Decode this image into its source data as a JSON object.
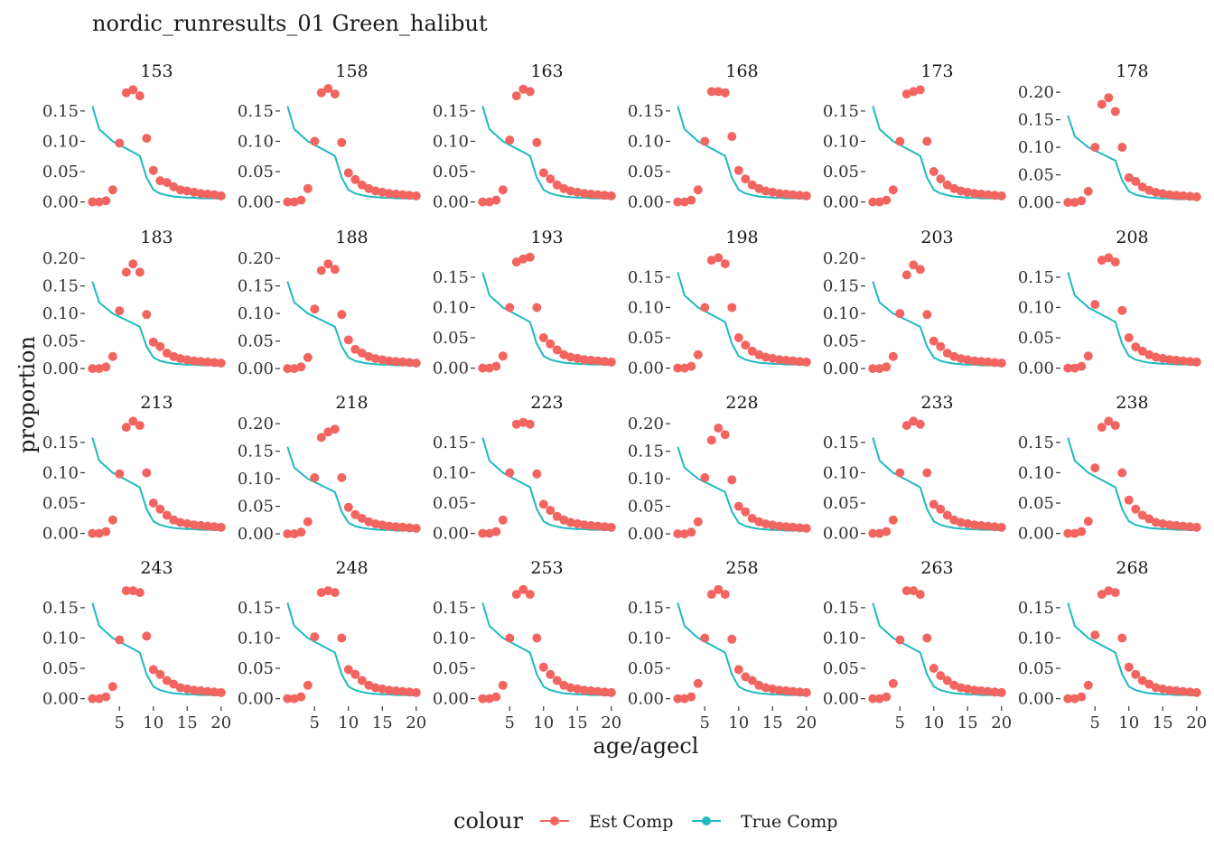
{
  "chart_data": {
    "type": "scatter",
    "title": "nordic_runresults_01 Green_halibut",
    "xlabel": "age/agecl",
    "ylabel": "proportion",
    "legend": {
      "title": "colour",
      "position": "bottom",
      "entries": [
        {
          "label": "Est Comp",
          "color": "#f2645f",
          "geom": "point-line"
        },
        {
          "label": "True Comp",
          "color": "#1dbac0",
          "geom": "line"
        }
      ]
    },
    "x_ticks": [
      5,
      10,
      15,
      20
    ],
    "xlim": [
      0.3,
      20.7
    ],
    "grid": false,
    "facet": {
      "rows": 4,
      "cols": 6,
      "scales": "free_y"
    },
    "x": [
      1,
      2,
      3,
      4,
      5,
      6,
      7,
      8,
      9,
      10,
      11,
      12,
      13,
      14,
      15,
      16,
      17,
      18,
      19,
      20
    ],
    "true_comp": [
      0.158,
      0.12,
      0.11,
      0.1,
      0.094,
      0.088,
      0.082,
      0.076,
      0.04,
      0.02,
      0.014,
      0.011,
      0.009,
      0.008,
      0.007,
      0.007,
      0.006,
      0.006,
      0.006,
      0.005
    ],
    "panels": [
      {
        "label": "153",
        "ylim": [
          -0.008,
          0.19
        ],
        "yticks": [
          0.0,
          0.05,
          0.1,
          0.15
        ],
        "tick_labels": [
          "0.00",
          "0.05",
          "0.10",
          "0.15"
        ],
        "est_comp": [
          0.0,
          0.0,
          0.002,
          0.02,
          0.097,
          0.18,
          0.185,
          0.175,
          0.105,
          0.052,
          0.035,
          0.032,
          0.025,
          0.02,
          0.018,
          0.016,
          0.014,
          0.013,
          0.012,
          0.01
        ]
      },
      {
        "label": "158",
        "ylim": [
          -0.008,
          0.19
        ],
        "yticks": [
          0.0,
          0.05,
          0.1,
          0.15
        ],
        "tick_labels": [
          "0.00",
          "0.05",
          "0.10",
          "0.15"
        ],
        "est_comp": [
          0.0,
          0.0,
          0.003,
          0.022,
          0.1,
          0.18,
          0.187,
          0.178,
          0.098,
          0.048,
          0.037,
          0.028,
          0.022,
          0.018,
          0.016,
          0.014,
          0.013,
          0.012,
          0.011,
          0.01
        ]
      },
      {
        "label": "163",
        "ylim": [
          -0.008,
          0.19
        ],
        "yticks": [
          0.0,
          0.05,
          0.1,
          0.15
        ],
        "tick_labels": [
          "0.00",
          "0.05",
          "0.10",
          "0.15"
        ],
        "est_comp": [
          0.0,
          0.0,
          0.003,
          0.02,
          0.102,
          0.175,
          0.186,
          0.182,
          0.098,
          0.048,
          0.038,
          0.028,
          0.022,
          0.018,
          0.016,
          0.014,
          0.013,
          0.012,
          0.011,
          0.01
        ]
      },
      {
        "label": "168",
        "ylim": [
          -0.008,
          0.19
        ],
        "yticks": [
          0.0,
          0.05,
          0.1,
          0.15
        ],
        "tick_labels": [
          "0.00",
          "0.05",
          "0.10",
          "0.15"
        ],
        "est_comp": [
          0.0,
          0.0,
          0.003,
          0.02,
          0.1,
          0.182,
          0.182,
          0.18,
          0.108,
          0.052,
          0.038,
          0.028,
          0.022,
          0.018,
          0.016,
          0.014,
          0.013,
          0.012,
          0.011,
          0.01
        ]
      },
      {
        "label": "173",
        "ylim": [
          -0.008,
          0.19
        ],
        "yticks": [
          0.0,
          0.05,
          0.1,
          0.15
        ],
        "tick_labels": [
          "0.00",
          "0.05",
          "0.10",
          "0.15"
        ],
        "est_comp": [
          0.0,
          0.0,
          0.003,
          0.02,
          0.1,
          0.178,
          0.182,
          0.185,
          0.1,
          0.05,
          0.038,
          0.028,
          0.022,
          0.018,
          0.016,
          0.014,
          0.013,
          0.012,
          0.011,
          0.01
        ]
      },
      {
        "label": "178",
        "ylim": [
          -0.008,
          0.21
        ],
        "yticks": [
          0.0,
          0.05,
          0.1,
          0.15,
          0.2
        ],
        "tick_labels": [
          "0.00",
          "0.05",
          "0.10",
          "0.15",
          "0.20"
        ],
        "est_comp": [
          0.0,
          0.0,
          0.003,
          0.02,
          0.1,
          0.178,
          0.19,
          0.165,
          0.1,
          0.045,
          0.038,
          0.028,
          0.022,
          0.018,
          0.016,
          0.014,
          0.013,
          0.012,
          0.011,
          0.01
        ]
      },
      {
        "label": "183",
        "ylim": [
          -0.008,
          0.21
        ],
        "yticks": [
          0.0,
          0.05,
          0.1,
          0.15,
          0.2
        ],
        "tick_labels": [
          "0.00",
          "0.05",
          "0.10",
          "0.15",
          "0.20"
        ],
        "est_comp": [
          0.0,
          0.0,
          0.003,
          0.022,
          0.105,
          0.175,
          0.19,
          0.175,
          0.098,
          0.048,
          0.04,
          0.028,
          0.022,
          0.018,
          0.016,
          0.014,
          0.013,
          0.012,
          0.011,
          0.01
        ]
      },
      {
        "label": "188",
        "ylim": [
          -0.008,
          0.21
        ],
        "yticks": [
          0.0,
          0.05,
          0.1,
          0.15,
          0.2
        ],
        "tick_labels": [
          "0.00",
          "0.05",
          "0.10",
          "0.15",
          "0.20"
        ],
        "est_comp": [
          0.0,
          0.0,
          0.003,
          0.02,
          0.108,
          0.178,
          0.19,
          0.18,
          0.098,
          0.052,
          0.035,
          0.028,
          0.022,
          0.018,
          0.016,
          0.014,
          0.013,
          0.012,
          0.011,
          0.01
        ]
      },
      {
        "label": "193",
        "ylim": [
          -0.008,
          0.19
        ],
        "yticks": [
          0.0,
          0.05,
          0.1,
          0.15
        ],
        "tick_labels": [
          "0.00",
          "0.05",
          "0.10",
          "0.15"
        ],
        "est_comp": [
          0.0,
          0.0,
          0.003,
          0.02,
          0.1,
          0.175,
          0.18,
          0.183,
          0.1,
          0.05,
          0.04,
          0.03,
          0.022,
          0.018,
          0.016,
          0.014,
          0.013,
          0.012,
          0.011,
          0.01
        ]
      },
      {
        "label": "198",
        "ylim": [
          -0.008,
          0.19
        ],
        "yticks": [
          0.0,
          0.05,
          0.1,
          0.15
        ],
        "tick_labels": [
          "0.00",
          "0.05",
          "0.10",
          "0.15"
        ],
        "est_comp": [
          0.0,
          0.0,
          0.003,
          0.022,
          0.1,
          0.178,
          0.182,
          0.172,
          0.1,
          0.05,
          0.038,
          0.028,
          0.022,
          0.018,
          0.016,
          0.014,
          0.013,
          0.012,
          0.011,
          0.01
        ]
      },
      {
        "label": "203",
        "ylim": [
          -0.008,
          0.21
        ],
        "yticks": [
          0.0,
          0.05,
          0.1,
          0.15,
          0.2
        ],
        "tick_labels": [
          "0.00",
          "0.05",
          "0.10",
          "0.15",
          "0.20"
        ],
        "est_comp": [
          0.0,
          0.0,
          0.003,
          0.022,
          0.1,
          0.17,
          0.188,
          0.18,
          0.098,
          0.05,
          0.04,
          0.028,
          0.022,
          0.018,
          0.016,
          0.014,
          0.013,
          0.012,
          0.011,
          0.01
        ]
      },
      {
        "label": "208",
        "ylim": [
          -0.008,
          0.19
        ],
        "yticks": [
          0.0,
          0.05,
          0.1,
          0.15
        ],
        "tick_labels": [
          "0.00",
          "0.05",
          "0.10",
          "0.15"
        ],
        "est_comp": [
          0.0,
          0.0,
          0.003,
          0.02,
          0.105,
          0.178,
          0.182,
          0.175,
          0.095,
          0.05,
          0.035,
          0.028,
          0.022,
          0.018,
          0.016,
          0.014,
          0.013,
          0.012,
          0.011,
          0.01
        ]
      },
      {
        "label": "213",
        "ylim": [
          -0.008,
          0.19
        ],
        "yticks": [
          0.0,
          0.05,
          0.1,
          0.15
        ],
        "tick_labels": [
          "0.00",
          "0.05",
          "0.10",
          "0.15"
        ],
        "est_comp": [
          0.0,
          0.0,
          0.003,
          0.022,
          0.098,
          0.175,
          0.185,
          0.178,
          0.1,
          0.05,
          0.04,
          0.03,
          0.022,
          0.018,
          0.016,
          0.014,
          0.013,
          0.012,
          0.011,
          0.01
        ]
      },
      {
        "label": "218",
        "ylim": [
          -0.008,
          0.21
        ],
        "yticks": [
          0.0,
          0.05,
          0.1,
          0.15,
          0.2
        ],
        "tick_labels": [
          "0.00",
          "0.05",
          "0.10",
          "0.15",
          "0.20"
        ],
        "est_comp": [
          0.0,
          0.0,
          0.003,
          0.022,
          0.102,
          0.175,
          0.185,
          0.19,
          0.102,
          0.048,
          0.035,
          0.028,
          0.022,
          0.018,
          0.016,
          0.014,
          0.013,
          0.012,
          0.011,
          0.01
        ]
      },
      {
        "label": "223",
        "ylim": [
          -0.008,
          0.19
        ],
        "yticks": [
          0.0,
          0.05,
          0.1,
          0.15
        ],
        "tick_labels": [
          "0.00",
          "0.05",
          "0.10",
          "0.15"
        ],
        "est_comp": [
          0.0,
          0.0,
          0.003,
          0.022,
          0.1,
          0.18,
          0.183,
          0.18,
          0.098,
          0.048,
          0.038,
          0.028,
          0.022,
          0.018,
          0.016,
          0.014,
          0.013,
          0.012,
          0.011,
          0.01
        ]
      },
      {
        "label": "228",
        "ylim": [
          -0.008,
          0.21
        ],
        "yticks": [
          0.0,
          0.05,
          0.1,
          0.15,
          0.2
        ],
        "tick_labels": [
          "0.00",
          "0.05",
          "0.10",
          "0.15",
          "0.20"
        ],
        "est_comp": [
          0.0,
          0.0,
          0.003,
          0.022,
          0.102,
          0.17,
          0.192,
          0.18,
          0.098,
          0.05,
          0.04,
          0.028,
          0.022,
          0.018,
          0.016,
          0.014,
          0.013,
          0.012,
          0.011,
          0.01
        ]
      },
      {
        "label": "233",
        "ylim": [
          -0.008,
          0.19
        ],
        "yticks": [
          0.0,
          0.05,
          0.1,
          0.15
        ],
        "tick_labels": [
          "0.00",
          "0.05",
          "0.10",
          "0.15"
        ],
        "est_comp": [
          0.0,
          0.0,
          0.003,
          0.022,
          0.1,
          0.178,
          0.185,
          0.18,
          0.1,
          0.048,
          0.04,
          0.03,
          0.022,
          0.018,
          0.016,
          0.014,
          0.013,
          0.012,
          0.011,
          0.01
        ]
      },
      {
        "label": "238",
        "ylim": [
          -0.008,
          0.19
        ],
        "yticks": [
          0.0,
          0.05,
          0.1,
          0.15
        ],
        "tick_labels": [
          "0.00",
          "0.05",
          "0.10",
          "0.15"
        ],
        "est_comp": [
          0.0,
          0.0,
          0.003,
          0.02,
          0.108,
          0.175,
          0.185,
          0.178,
          0.1,
          0.055,
          0.04,
          0.03,
          0.024,
          0.018,
          0.016,
          0.014,
          0.013,
          0.012,
          0.011,
          0.01
        ]
      },
      {
        "label": "243",
        "ylim": [
          -0.008,
          0.19
        ],
        "yticks": [
          0.0,
          0.05,
          0.1,
          0.15
        ],
        "tick_labels": [
          "0.00",
          "0.05",
          "0.10",
          "0.15"
        ],
        "est_comp": [
          0.0,
          0.0,
          0.003,
          0.02,
          0.097,
          0.178,
          0.178,
          0.175,
          0.103,
          0.048,
          0.04,
          0.03,
          0.024,
          0.018,
          0.016,
          0.014,
          0.013,
          0.012,
          0.011,
          0.01
        ]
      },
      {
        "label": "248",
        "ylim": [
          -0.008,
          0.19
        ],
        "yticks": [
          0.0,
          0.05,
          0.1,
          0.15
        ],
        "tick_labels": [
          "0.00",
          "0.05",
          "0.10",
          "0.15"
        ],
        "est_comp": [
          0.0,
          0.0,
          0.003,
          0.022,
          0.102,
          0.175,
          0.178,
          0.175,
          0.1,
          0.048,
          0.04,
          0.03,
          0.022,
          0.018,
          0.016,
          0.014,
          0.013,
          0.012,
          0.011,
          0.01
        ]
      },
      {
        "label": "253",
        "ylim": [
          -0.008,
          0.19
        ],
        "yticks": [
          0.0,
          0.05,
          0.1,
          0.15
        ],
        "tick_labels": [
          "0.00",
          "0.05",
          "0.10",
          "0.15"
        ],
        "est_comp": [
          0.0,
          0.0,
          0.003,
          0.022,
          0.1,
          0.172,
          0.18,
          0.172,
          0.1,
          0.052,
          0.04,
          0.03,
          0.022,
          0.018,
          0.016,
          0.014,
          0.013,
          0.012,
          0.011,
          0.01
        ]
      },
      {
        "label": "258",
        "ylim": [
          -0.008,
          0.19
        ],
        "yticks": [
          0.0,
          0.05,
          0.1,
          0.15
        ],
        "tick_labels": [
          "0.00",
          "0.05",
          "0.10",
          "0.15"
        ],
        "est_comp": [
          0.0,
          0.0,
          0.003,
          0.025,
          0.1,
          0.172,
          0.18,
          0.172,
          0.098,
          0.048,
          0.036,
          0.03,
          0.022,
          0.018,
          0.016,
          0.014,
          0.013,
          0.012,
          0.011,
          0.01
        ]
      },
      {
        "label": "263",
        "ylim": [
          -0.008,
          0.19
        ],
        "yticks": [
          0.0,
          0.05,
          0.1,
          0.15
        ],
        "tick_labels": [
          "0.00",
          "0.05",
          "0.10",
          "0.15"
        ],
        "est_comp": [
          0.0,
          0.0,
          0.003,
          0.025,
          0.097,
          0.178,
          0.178,
          0.172,
          0.1,
          0.05,
          0.038,
          0.03,
          0.022,
          0.018,
          0.016,
          0.014,
          0.013,
          0.012,
          0.011,
          0.01
        ]
      },
      {
        "label": "268",
        "ylim": [
          -0.008,
          0.19
        ],
        "yticks": [
          0.0,
          0.05,
          0.1,
          0.15
        ],
        "tick_labels": [
          "0.00",
          "0.05",
          "0.10",
          "0.15"
        ],
        "est_comp": [
          0.0,
          0.0,
          0.003,
          0.022,
          0.105,
          0.172,
          0.178,
          0.175,
          0.1,
          0.052,
          0.04,
          0.03,
          0.024,
          0.018,
          0.016,
          0.014,
          0.013,
          0.012,
          0.011,
          0.01
        ]
      }
    ]
  }
}
